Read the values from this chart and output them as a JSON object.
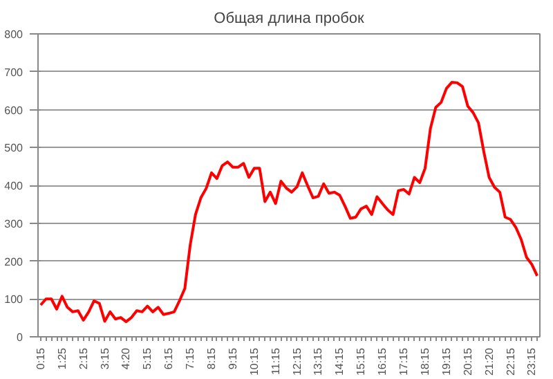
{
  "chart_data": {
    "type": "line",
    "title": "Общая длина пробок",
    "categories": [
      "0:15",
      null,
      null,
      null,
      "1:25",
      null,
      null,
      null,
      "2:15",
      null,
      null,
      null,
      "3:15",
      null,
      null,
      null,
      "4:20",
      null,
      null,
      null,
      "5:15",
      null,
      null,
      null,
      "6:15",
      null,
      null,
      null,
      "7:15",
      null,
      null,
      null,
      "8:15",
      null,
      null,
      null,
      "9:15",
      null,
      null,
      null,
      "10:15",
      null,
      null,
      null,
      "11:15",
      null,
      null,
      null,
      "12:15",
      null,
      null,
      null,
      "13:15",
      null,
      null,
      null,
      "14:15",
      null,
      null,
      null,
      "15:15",
      null,
      null,
      null,
      "16:15",
      null,
      null,
      null,
      "17:15",
      null,
      null,
      null,
      "18:15",
      null,
      null,
      null,
      "19:15",
      null,
      null,
      null,
      "20:15",
      null,
      null,
      null,
      "21:20",
      null,
      null,
      null,
      "22:15",
      null,
      null,
      null,
      "23:15",
      null
    ],
    "series": [
      {
        "color": "#ff0000",
        "values": [
          84,
          100,
          100,
          73,
          107,
          78,
          66,
          69,
          44,
          66,
          95,
          88,
          41,
          66,
          47,
          51,
          40,
          51,
          69,
          66,
          81,
          66,
          78,
          59,
          62,
          66,
          95,
          128,
          242,
          323,
          367,
          392,
          433,
          418,
          452,
          462,
          448,
          448,
          458,
          421,
          445,
          445,
          357,
          382,
          352,
          411,
          393,
          382,
          396,
          433,
          399,
          367,
          371,
          404,
          379,
          382,
          374,
          345,
          313,
          316,
          338,
          345,
          323,
          370,
          352,
          335,
          323,
          386,
          389,
          377,
          421,
          407,
          445,
          550,
          606,
          619,
          656,
          672,
          671,
          661,
          609,
          592,
          565,
          489,
          421,
          395,
          382,
          316,
          310,
          289,
          257,
          210,
          191,
          161
        ]
      }
    ],
    "ylim": [
      0,
      800
    ],
    "yticks": [
      0,
      100,
      200,
      300,
      400,
      500,
      600,
      700,
      800
    ],
    "grid": "y",
    "marker": "none",
    "line_style": "solid"
  }
}
